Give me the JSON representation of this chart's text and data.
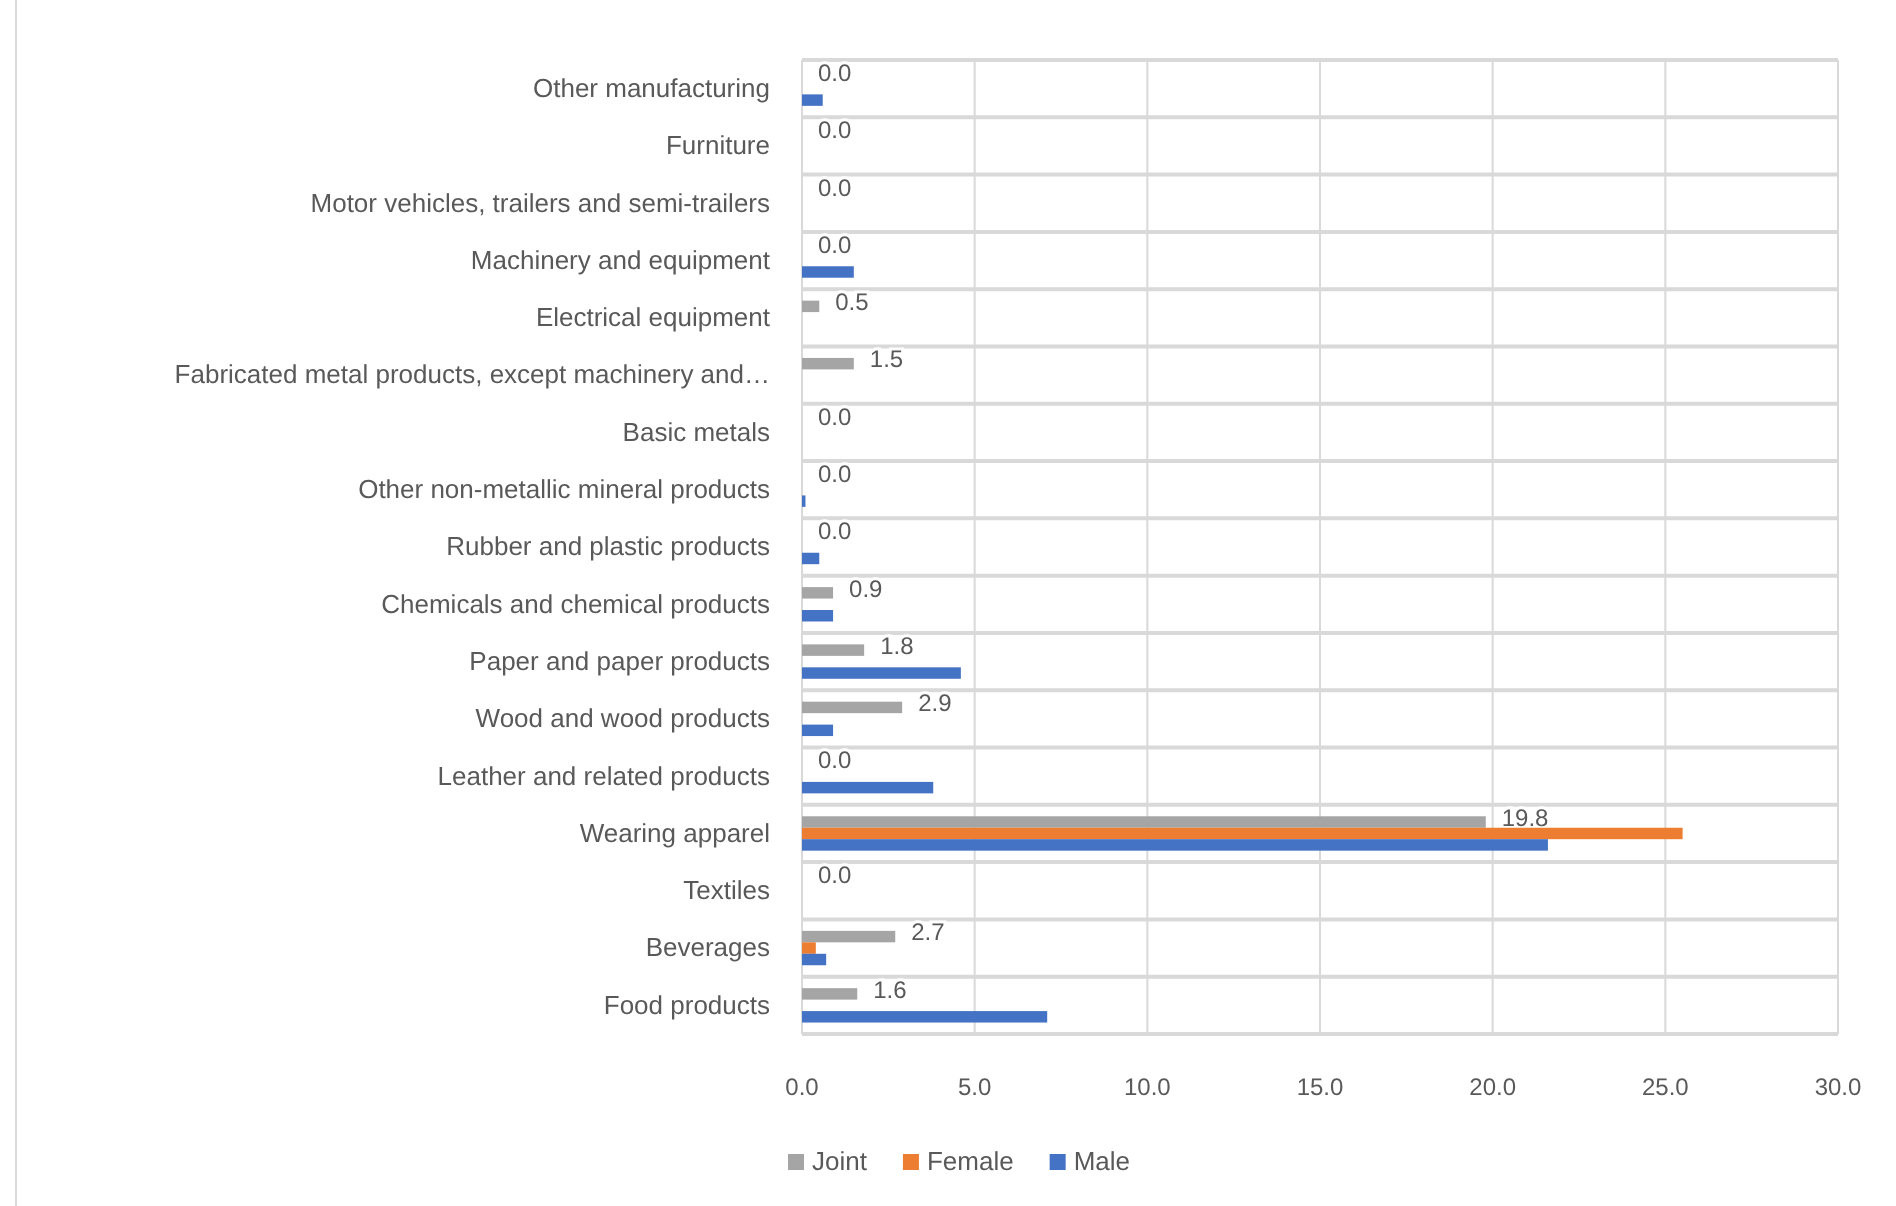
{
  "chart_data": {
    "type": "bar",
    "orientation": "horizontal",
    "categories": [
      "Other manufacturing",
      "Furniture",
      "Motor vehicles, trailers and semi-trailers",
      "Machinery and equipment",
      "Electrical equipment",
      "Fabricated metal products, except machinery and…",
      "Basic metals",
      "Other non-metallic mineral products",
      "Rubber and plastic products",
      "Chemicals and chemical products",
      "Paper and paper products",
      "Wood and wood products",
      "Leather and related products",
      "Wearing apparel",
      "Textiles",
      "Beverages",
      "Food products"
    ],
    "series": [
      {
        "name": "Joint",
        "color": "#a5a5a5",
        "values": [
          0,
          0,
          0,
          0,
          0.5,
          1.5,
          0,
          0,
          0,
          0.9,
          1.8,
          2.9,
          0,
          19.8,
          0,
          2.7,
          1.6
        ],
        "value_labels": [
          "0.0",
          "0.0",
          "0.0",
          "0.0",
          "0.5",
          "1.5",
          "0.0",
          "0.0",
          "0.0",
          "0.9",
          "1.8",
          "2.9",
          "0.0",
          "19.8",
          "0.0",
          "2.7",
          "1.6"
        ]
      },
      {
        "name": "Female",
        "color": "#ed7d31",
        "values": [
          0,
          0,
          0,
          0,
          0,
          0,
          0,
          0,
          0,
          0,
          0,
          0,
          0,
          25.5,
          0,
          0.4,
          0
        ]
      },
      {
        "name": "Male",
        "color": "#4472c4",
        "values": [
          0.6,
          0,
          0,
          1.5,
          0,
          0,
          0,
          0.1,
          0.5,
          0.9,
          4.6,
          0.9,
          3.8,
          21.6,
          0,
          0.7,
          7.1
        ]
      }
    ],
    "xlim": [
      0,
      30
    ],
    "xticks": [
      {
        "value": 0,
        "label": "0.0"
      },
      {
        "value": 5,
        "label": "5.0"
      },
      {
        "value": 10,
        "label": "10.0"
      },
      {
        "value": 15,
        "label": "15.0"
      },
      {
        "value": 20,
        "label": "20.0"
      },
      {
        "value": 25,
        "label": "25.0"
      },
      {
        "value": 30,
        "label": "30.0"
      }
    ],
    "grid": true,
    "legend": "bottom"
  }
}
